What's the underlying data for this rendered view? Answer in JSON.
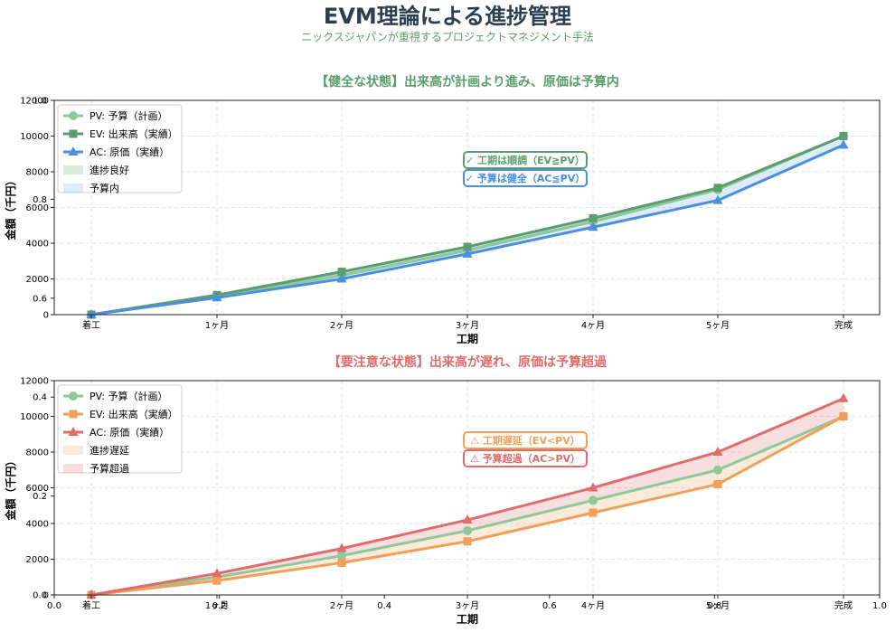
{
  "header": {
    "title": "EVM理論による進捗管理",
    "subtitle": "ニックスジャパンが重視するプロジェクトマネジメント手法"
  },
  "colors": {
    "pv": "#8fc99a",
    "ev_good": "#5a9e6f",
    "ac_good": "#4a8fe0",
    "ev_bad": "#f0a05a",
    "ac_bad": "#e06c6c",
    "title_good": "#5a9e6f",
    "title_bad": "#e06c6c"
  },
  "overlay_axis": {
    "x_ticks": [
      "0.0",
      "0.2",
      "0.4",
      "0.6",
      "0.8",
      "1.0"
    ],
    "y_ticks": [
      "0.0",
      "0.2",
      "0.4",
      "0.6",
      "0.8",
      "1.0"
    ]
  },
  "chart_data": [
    {
      "type": "line",
      "title": "【健全な状態】出来高が計画より進み、原価は予算内",
      "xlabel": "工期",
      "ylabel": "金額（千円）",
      "categories": [
        "着工",
        "1ヶ月",
        "2ヶ月",
        "3ヶ月",
        "4ヶ月",
        "5ヶ月",
        "完成"
      ],
      "ylim": [
        0,
        12000
      ],
      "yticks": [
        0,
        2000,
        4000,
        6000,
        8000,
        10000,
        12000
      ],
      "grid": true,
      "legend_position": "top-left",
      "series": [
        {
          "name": "PV: 予算（計画）",
          "key": "pv",
          "marker": "circle",
          "values": [
            0,
            1000,
            2200,
            3600,
            5200,
            7000,
            10000
          ]
        },
        {
          "name": "EV: 出来高（実績）",
          "key": "ev",
          "marker": "square",
          "values": [
            0,
            1100,
            2400,
            3800,
            5400,
            7100,
            10000
          ]
        },
        {
          "name": "AC: 原価（実績）",
          "key": "ac",
          "marker": "triangle",
          "values": [
            0,
            950,
            2000,
            3400,
            4900,
            6400,
            9500
          ]
        }
      ],
      "fills": [
        {
          "name": "進捗良好",
          "between": [
            "pv",
            "ev"
          ]
        },
        {
          "name": "予算内",
          "between": [
            "ac",
            "ev"
          ]
        }
      ],
      "annotations": [
        "✓ 工期は順調（EV≧PV）",
        "✓ 予算は健全（AC≦PV）"
      ]
    },
    {
      "type": "line",
      "title": "【要注意な状態】出来高が遅れ、原価は予算超過",
      "xlabel": "工期",
      "ylabel": "金額（千円）",
      "categories": [
        "着工",
        "1ヶ月",
        "2ヶ月",
        "3ヶ月",
        "4ヶ月",
        "5ヶ月",
        "完成"
      ],
      "ylim": [
        0,
        12000
      ],
      "yticks": [
        0,
        2000,
        4000,
        6000,
        8000,
        10000,
        12000
      ],
      "grid": true,
      "legend_position": "top-left",
      "series": [
        {
          "name": "PV: 予算（計画）",
          "key": "pv",
          "marker": "circle",
          "values": [
            0,
            1000,
            2200,
            3600,
            5300,
            7000,
            10000
          ]
        },
        {
          "name": "EV: 出来高（実績）",
          "key": "ev",
          "marker": "square",
          "values": [
            0,
            800,
            1800,
            3000,
            4600,
            6200,
            10000
          ]
        },
        {
          "name": "AC: 原価（実績）",
          "key": "ac",
          "marker": "triangle",
          "values": [
            0,
            1200,
            2600,
            4200,
            6000,
            8000,
            11000
          ]
        }
      ],
      "fills": [
        {
          "name": "進捗遅延",
          "between": [
            "ev",
            "pv"
          ]
        },
        {
          "name": "予算超過",
          "between": [
            "pv",
            "ac"
          ]
        }
      ],
      "annotations": [
        "⚠ 工期遅延（EV<PV）",
        "⚠ 予算超過（AC>PV）"
      ]
    }
  ]
}
